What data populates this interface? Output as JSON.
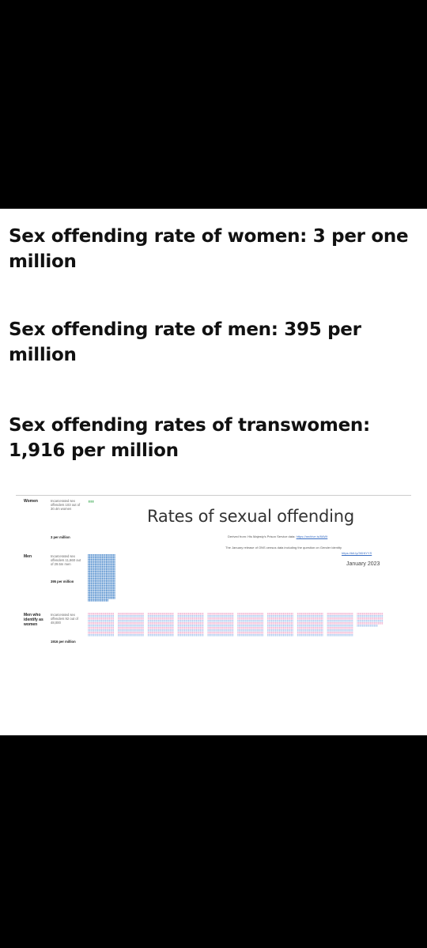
{
  "headlines": [
    "Sex offending rate of women: 3 per one million",
    "Sex offending rate of men: 395 per million",
    "Sex offending rates of transwomen: 1,916 per million"
  ],
  "infographic": {
    "title": "Rates of sexual offending",
    "source_prefix": "Derived from: His Majesty's Prison Service data:",
    "source_link": "https://archive.is/8AWt",
    "census_note": "The January release of ONS census data including the question on Gender identity",
    "census_link": "https://bit.ly/3KHtYYS",
    "date": "January 2023"
  },
  "groups": [
    {
      "label": "Women",
      "desc": "Incarcerated sex offenders 103 out of 30.4m women",
      "rate_text": "3 per million"
    },
    {
      "label": "Men",
      "desc": "Incarcerated sex offenders 11,660 out of 29.5m men",
      "rate_text": "395 per million"
    },
    {
      "label": "Men who identify as women",
      "desc": "Incarcerated sex offenders 92 out of 48,000",
      "rate_text": "1916 per million"
    }
  ],
  "chart_data": {
    "type": "pictogram",
    "title": "Rates of sexual offending",
    "unit": "sex offenders per million",
    "categories": [
      "Women",
      "Men",
      "Men who identify as women"
    ],
    "values": [
      3,
      395,
      1916
    ],
    "colors": {
      "Women": "#1f9e3a",
      "Men": "#3c7fc7",
      "Men who identify as women": [
        "#f2b0cf",
        "#a9c8ee"
      ]
    }
  }
}
